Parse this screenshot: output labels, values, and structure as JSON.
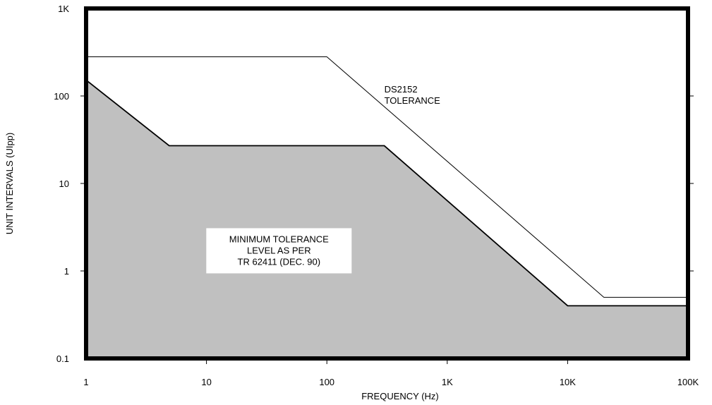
{
  "chart_data": {
    "type": "area",
    "xlabel": "FREQUENCY (Hz)",
    "ylabel": "UNIT INTERVALS (UIpp)",
    "xscale": "log",
    "yscale": "log",
    "xlim": [
      1,
      100000
    ],
    "ylim": [
      0.1,
      1000
    ],
    "x_ticks": [
      {
        "value": 1,
        "label": "1"
      },
      {
        "value": 10,
        "label": "10"
      },
      {
        "value": 100,
        "label": "100"
      },
      {
        "value": 1000,
        "label": "1K"
      },
      {
        "value": 10000,
        "label": "10K"
      },
      {
        "value": 100000,
        "label": "100K"
      }
    ],
    "y_ticks": [
      {
        "value": 0.1,
        "label": "0.1"
      },
      {
        "value": 1,
        "label": "1"
      },
      {
        "value": 10,
        "label": "10"
      },
      {
        "value": 100,
        "label": "100"
      },
      {
        "value": 1000,
        "label": "1K"
      }
    ],
    "grid": false,
    "series": [
      {
        "role": "minimum_tolerance_area",
        "fill": "#c0c0c0",
        "points": [
          [
            1,
            152
          ],
          [
            4.9,
            27
          ],
          [
            300,
            27
          ],
          [
            10000,
            0.4
          ],
          [
            100000,
            0.4
          ]
        ]
      },
      {
        "role": "ds2152_tolerance_line",
        "points": [
          [
            1,
            280
          ],
          [
            100,
            280
          ],
          [
            20000,
            0.5
          ],
          [
            100000,
            0.5
          ]
        ]
      }
    ],
    "annotations": [
      {
        "id": "ds2152",
        "lines": [
          "DS2152",
          "TOLERANCE"
        ],
        "at": [
          300,
          110
        ],
        "boxed": false
      },
      {
        "id": "min_tol",
        "lines": [
          "MINIMUM TOLERANCE",
          "LEVEL AS PER",
          "TR 62411 (DEC. 90)"
        ],
        "at": [
          40,
          1.7
        ],
        "boxed": true
      }
    ]
  },
  "colors": {
    "area": "#c0c0c0",
    "line": "#000000",
    "frame": "#000000",
    "label_box": "#ffffff"
  }
}
